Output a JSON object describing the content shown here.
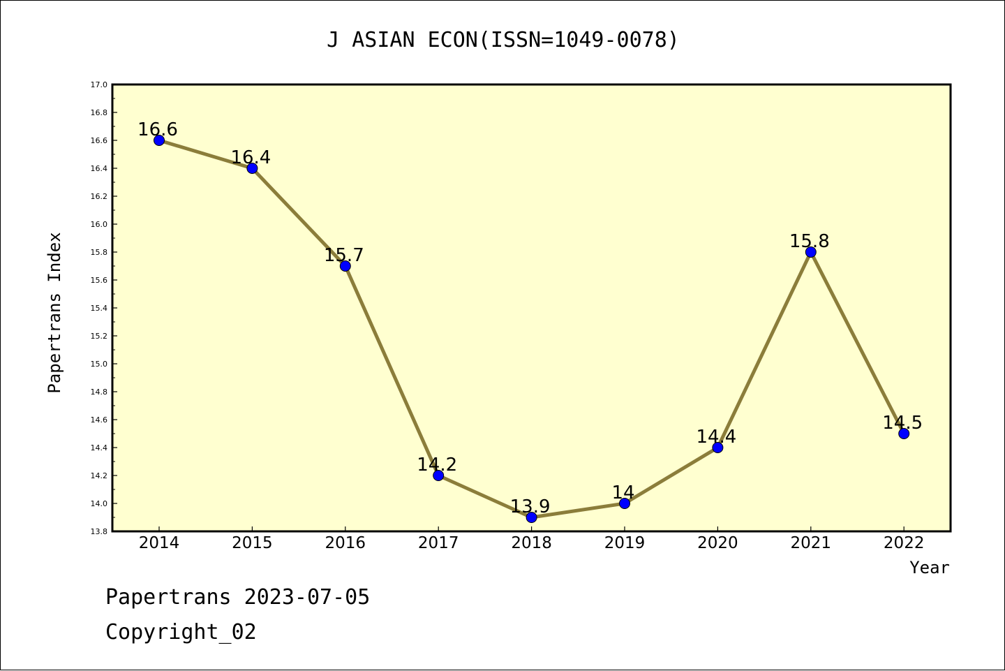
{
  "chart_data": {
    "type": "line",
    "title": "J ASIAN ECON(ISSN=1049-0078)",
    "xlabel": "Year",
    "ylabel": "Papertrans Index",
    "categories": [
      "2014",
      "2015",
      "2016",
      "2017",
      "2018",
      "2019",
      "2020",
      "2021",
      "2022"
    ],
    "series": [
      {
        "values": [
          16.6,
          16.4,
          15.7,
          14.2,
          13.9,
          14.0,
          14.4,
          15.8,
          14.5
        ],
        "labels": [
          "16.6",
          "16.4",
          "15.7",
          "14.2",
          "13.9",
          "14",
          "14.4",
          "15.8",
          "14.5"
        ],
        "line_color": "#8B7D3A",
        "marker_color": "#0000FF"
      }
    ],
    "ylim": [
      13.8,
      17.0
    ],
    "yticks": [
      "13.8",
      "14.0",
      "14.2",
      "14.4",
      "14.6",
      "14.8",
      "15.0",
      "15.2",
      "15.4",
      "15.6",
      "15.8",
      "16.0",
      "16.2",
      "16.4",
      "16.6",
      "16.8",
      "17.0"
    ],
    "grid": false,
    "plot_background": "#FFFFD0"
  },
  "footer": {
    "line1": "Papertrans 2023-07-05",
    "line2": "Copyright_02"
  }
}
